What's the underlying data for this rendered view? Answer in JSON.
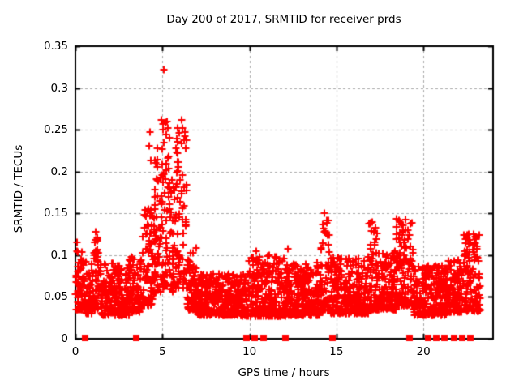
{
  "title": "Day 200 of 2017, SRMTID for receiver prds",
  "axes": {
    "xlabel": "GPS time / hours",
    "ylabel": "SRMTID / TECUs"
  },
  "chart_data": {
    "type": "scatter",
    "title": "Day 200 of 2017, SRMTID for receiver prds",
    "xlabel": "GPS time / hours",
    "ylabel": "SRMTID / TECUs",
    "xlim": [
      0,
      24
    ],
    "ylim": [
      0,
      0.35
    ],
    "xticks": [
      0,
      5,
      10,
      15,
      20
    ],
    "yticks": [
      0,
      0.05,
      0.1,
      0.15,
      0.2,
      0.25,
      0.3,
      0.35
    ],
    "grid": true,
    "grid_color": "#a9a9a9",
    "border_color": "#000000",
    "marker_color": "#ff0000",
    "legend": "none",
    "series": [
      {
        "name": "srmtid-values",
        "marker": "plus",
        "description": "Dense 30s-cadence SRMTID scatter; quiet band ~0.03-0.09 TECUs with disturbance spike hours 4.5-6.5 peaking 0.32, evening activity near hours 17-19.4 and 22.3-23.3",
        "distribution_segments": [
          [
            0.02,
            0.6,
            70,
            0.035,
            0.105,
            1.8
          ],
          [
            0.6,
            1.05,
            55,
            0.03,
            0.09,
            1.7
          ],
          [
            1.05,
            1.45,
            50,
            0.035,
            0.125,
            2.0
          ],
          [
            1.45,
            3.1,
            200,
            0.028,
            0.09,
            1.7
          ],
          [
            3.1,
            3.8,
            85,
            0.032,
            0.1,
            1.8
          ],
          [
            3.8,
            4.45,
            80,
            0.04,
            0.155,
            1.9
          ],
          [
            4.45,
            5.0,
            70,
            0.055,
            0.235,
            1.5
          ],
          [
            5.0,
            5.45,
            55,
            0.06,
            0.26,
            1.5
          ],
          [
            5.45,
            5.8,
            42,
            0.055,
            0.19,
            1.5
          ],
          [
            5.8,
            6.4,
            72,
            0.06,
            0.255,
            1.4
          ],
          [
            6.4,
            7.0,
            70,
            0.035,
            0.11,
            1.9
          ],
          [
            7.0,
            9.6,
            310,
            0.028,
            0.078,
            1.6
          ],
          [
            9.6,
            12.1,
            300,
            0.027,
            0.1,
            2.0
          ],
          [
            12.1,
            14.05,
            235,
            0.028,
            0.092,
            1.9
          ],
          [
            14.05,
            14.6,
            65,
            0.033,
            0.152,
            2.2
          ],
          [
            14.6,
            16.85,
            270,
            0.03,
            0.098,
            1.8
          ],
          [
            16.85,
            17.35,
            60,
            0.035,
            0.142,
            2.0
          ],
          [
            17.35,
            18.45,
            130,
            0.035,
            0.105,
            1.8
          ],
          [
            18.45,
            19.4,
            115,
            0.04,
            0.147,
            1.9
          ],
          [
            19.4,
            21.3,
            230,
            0.028,
            0.088,
            1.7
          ],
          [
            21.3,
            22.3,
            120,
            0.032,
            0.095,
            1.7
          ],
          [
            22.3,
            23.3,
            120,
            0.033,
            0.128,
            1.9
          ]
        ],
        "notable_points": [
          [
            5.08,
            0.322
          ],
          [
            4.96,
            0.262
          ],
          [
            5.3,
            0.252
          ],
          [
            6.12,
            0.262
          ],
          [
            6.3,
            0.247
          ],
          [
            4.28,
            0.247
          ],
          [
            4.25,
            0.231
          ],
          [
            4.32,
            0.213
          ],
          [
            5.55,
            0.19
          ],
          [
            1.17,
            0.128
          ],
          [
            1.25,
            0.117
          ],
          [
            0.1,
            0.115
          ],
          [
            14.3,
            0.15
          ],
          [
            14.45,
            0.142
          ],
          [
            16.98,
            0.139
          ],
          [
            17.15,
            0.128
          ],
          [
            18.6,
            0.142
          ],
          [
            18.85,
            0.136
          ],
          [
            19.1,
            0.13
          ],
          [
            22.5,
            0.124
          ],
          [
            22.65,
            0.118
          ],
          [
            22.95,
            0.112
          ],
          [
            12.2,
            0.108
          ],
          [
            10.4,
            0.105
          ]
        ],
        "seed": 42
      },
      {
        "name": "flagged-epochs",
        "marker": "filled-square",
        "y": 0,
        "x": [
          0.56,
          3.5,
          9.83,
          10.3,
          10.81,
          12.07,
          14.77,
          19.2,
          20.27,
          20.74,
          21.2,
          21.76,
          22.23,
          22.7
        ]
      }
    ]
  }
}
